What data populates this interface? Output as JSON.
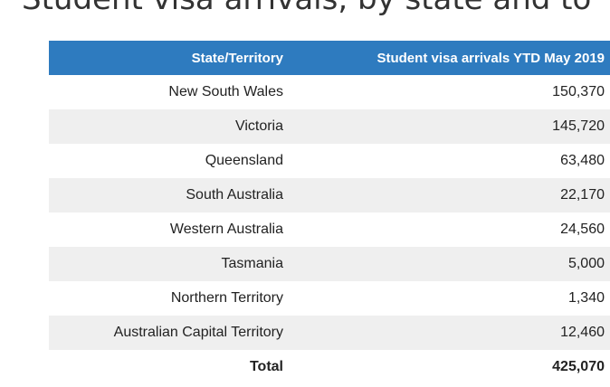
{
  "title": "Student visa arrivals, by state and to",
  "chart_data": {
    "type": "table",
    "columns": [
      "State/Territory",
      "Student visa arrivals YTD May 2019"
    ],
    "rows": [
      {
        "state": "New South Wales",
        "value": "150,370"
      },
      {
        "state": "Victoria",
        "value": "145,720"
      },
      {
        "state": "Queensland",
        "value": "63,480"
      },
      {
        "state": "South Australia",
        "value": "22,170"
      },
      {
        "state": "Western Australia",
        "value": "24,560"
      },
      {
        "state": "Tasmania",
        "value": "5,000"
      },
      {
        "state": "Northern Territory",
        "value": "1,340"
      },
      {
        "state": "Australian Capital Territory",
        "value": "12,460"
      }
    ],
    "total": {
      "label": "Total",
      "value": "425,070"
    }
  },
  "colors": {
    "header_background": "#2e7bbf",
    "header_text": "#ffffff",
    "alt_row_background": "#efefef"
  }
}
